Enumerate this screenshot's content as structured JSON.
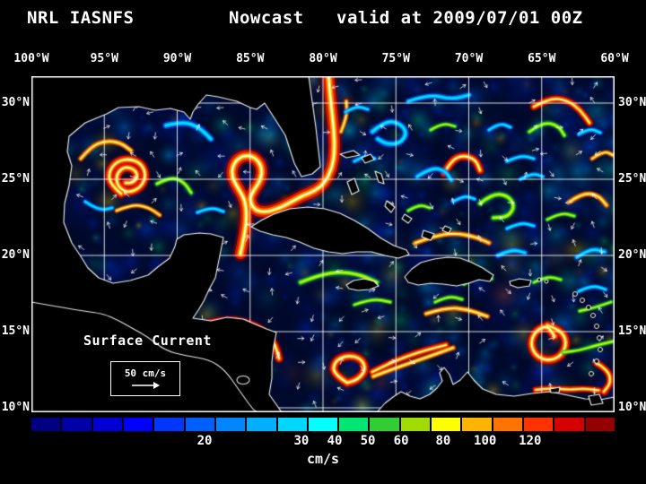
{
  "header": {
    "model": "NRL IASNFS",
    "product": "Nowcast",
    "valid_time": "valid at 2009/07/01 00Z"
  },
  "axes": {
    "lon_labels": [
      "100°W",
      "95°W",
      "90°W",
      "85°W",
      "80°W",
      "75°W",
      "70°W",
      "65°W",
      "60°W"
    ],
    "lat_labels": [
      "30°N",
      "25°N",
      "20°N",
      "15°N",
      "10°N"
    ]
  },
  "map": {
    "annotation": "Surface Current",
    "reference_vector_label": "50 cm/s"
  },
  "colorbar": {
    "units_label": "cm/s",
    "tick_labels": [
      "20",
      "30",
      "40",
      "50",
      "60",
      "80",
      "100",
      "120"
    ],
    "tick_positions": [
      0.297,
      0.463,
      0.52,
      0.577,
      0.634,
      0.706,
      0.778,
      0.855
    ],
    "colors": [
      "#000082",
      "#0000aa",
      "#0000d4",
      "#0000ff",
      "#0037ff",
      "#005fff",
      "#0087ff",
      "#00afff",
      "#00d7ff",
      "#00ffff",
      "#00e673",
      "#32cd32",
      "#a0dc00",
      "#ffff00",
      "#ffb400",
      "#ff7300",
      "#ff3200",
      "#d70000",
      "#960000"
    ]
  },
  "chart_data": {
    "type": "heatmap",
    "title": "NRL IASNFS Nowcast valid at 2009/07/01 00Z",
    "variable": "Surface Current",
    "units": "cm/s",
    "x_axis": {
      "ticks": [
        "100°W",
        "95°W",
        "90°W",
        "85°W",
        "80°W",
        "75°W",
        "70°W",
        "65°W",
        "60°W"
      ],
      "range_deg_west": [
        100,
        60
      ]
    },
    "y_axis": {
      "ticks": [
        "30°N",
        "25°N",
        "20°N",
        "15°N",
        "10°N"
      ],
      "range_deg_north": [
        10,
        30
      ]
    },
    "grid": true,
    "legend_position": "bottom",
    "colorbar": {
      "orientation": "horizontal",
      "n_segments": 19,
      "tick_values": [
        20,
        30,
        40,
        50,
        60,
        80,
        100,
        120
      ],
      "units": "cm/s",
      "colors": [
        "#000082",
        "#0000aa",
        "#0000d4",
        "#0000ff",
        "#0037ff",
        "#005fff",
        "#0087ff",
        "#00afff",
        "#00d7ff",
        "#00ffff",
        "#00e673",
        "#32cd32",
        "#a0dc00",
        "#ffff00",
        "#ffb400",
        "#ff7300",
        "#ff3200",
        "#d70000",
        "#960000"
      ]
    },
    "reference_vector": {
      "value": 50,
      "units": "cm/s"
    },
    "annotation": "Surface Current"
  }
}
